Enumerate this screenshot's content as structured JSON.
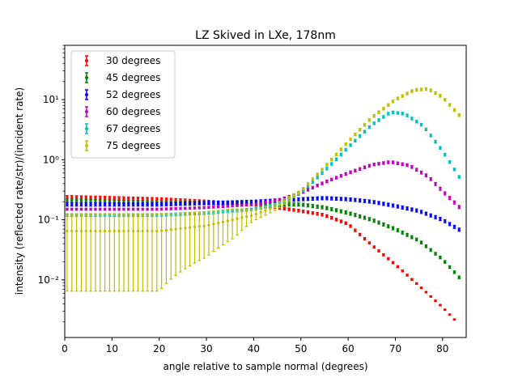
{
  "chart_data": {
    "type": "scatter",
    "title": "LZ Skived in LXe, 178nm",
    "xlabel": "angle relative to sample normal (degrees)",
    "ylabel": "intensity (reflected rate/str)/(incident rate)",
    "xlim": [
      0,
      85
    ],
    "ylim": [
      0.0011,
      80
    ],
    "yscale": "log",
    "grid": false,
    "legend_position": "top-left",
    "x_ticks": [
      0,
      10,
      20,
      30,
      40,
      50,
      60,
      70,
      80
    ],
    "x_tick_labels": [
      "0",
      "10",
      "20",
      "30",
      "40",
      "50",
      "60",
      "70",
      "80"
    ],
    "y_ticks": [
      0.01,
      0.1,
      1,
      10
    ],
    "y_tick_labels": [
      "10⁻²",
      "10⁻¹",
      "10⁰",
      "10¹"
    ],
    "series": [
      {
        "name": "30 degrees",
        "color": "#ff0000",
        "points": [
          [
            0,
            0.24
          ],
          [
            10,
            0.23
          ],
          [
            20,
            0.22
          ],
          [
            30,
            0.2
          ],
          [
            40,
            0.18
          ],
          [
            45,
            0.16
          ],
          [
            50,
            0.14
          ],
          [
            55,
            0.12
          ],
          [
            60,
            0.085
          ],
          [
            65,
            0.038
          ],
          [
            70,
            0.018
          ],
          [
            75,
            0.008
          ],
          [
            80,
            0.0035
          ],
          [
            83,
            0.002
          ]
        ],
        "errors": [
          [
            0,
            0.06
          ],
          [
            10,
            0.06
          ],
          [
            20,
            0.06
          ],
          [
            30,
            0.06
          ],
          [
            40,
            0.05
          ],
          [
            50,
            0.05
          ],
          [
            60,
            0.05
          ],
          [
            65,
            0.04
          ],
          [
            70,
            0.04
          ],
          [
            80,
            0.02
          ]
        ]
      },
      {
        "name": "45 degrees",
        "color": "#008000",
        "points": [
          [
            0,
            0.21
          ],
          [
            10,
            0.2
          ],
          [
            20,
            0.19
          ],
          [
            30,
            0.19
          ],
          [
            40,
            0.19
          ],
          [
            45,
            0.18
          ],
          [
            50,
            0.18
          ],
          [
            55,
            0.16
          ],
          [
            60,
            0.13
          ],
          [
            65,
            0.1
          ],
          [
            70,
            0.07
          ],
          [
            75,
            0.045
          ],
          [
            80,
            0.022
          ],
          [
            84,
            0.01
          ]
        ],
        "errors": [
          [
            0,
            0.06
          ],
          [
            10,
            0.06
          ],
          [
            20,
            0.06
          ],
          [
            30,
            0.06
          ],
          [
            40,
            0.06
          ],
          [
            50,
            0.06
          ],
          [
            60,
            0.06
          ],
          [
            70,
            0.06
          ],
          [
            80,
            0.05
          ]
        ]
      },
      {
        "name": "52 degrees",
        "color": "#0000ff",
        "points": [
          [
            0,
            0.18
          ],
          [
            10,
            0.18
          ],
          [
            20,
            0.18
          ],
          [
            30,
            0.19
          ],
          [
            40,
            0.2
          ],
          [
            45,
            0.21
          ],
          [
            50,
            0.22
          ],
          [
            55,
            0.23
          ],
          [
            60,
            0.22
          ],
          [
            65,
            0.2
          ],
          [
            70,
            0.17
          ],
          [
            75,
            0.14
          ],
          [
            80,
            0.1
          ],
          [
            84,
            0.065
          ]
        ],
        "errors": [
          [
            0,
            0.06
          ],
          [
            10,
            0.06
          ],
          [
            20,
            0.06
          ],
          [
            30,
            0.06
          ],
          [
            40,
            0.06
          ],
          [
            50,
            0.06
          ],
          [
            60,
            0.06
          ],
          [
            70,
            0.06
          ],
          [
            80,
            0.06
          ]
        ]
      },
      {
        "name": "60 degrees",
        "color": "#bf00bf",
        "points": [
          [
            0,
            0.15
          ],
          [
            10,
            0.15
          ],
          [
            20,
            0.15
          ],
          [
            30,
            0.16
          ],
          [
            40,
            0.18
          ],
          [
            45,
            0.21
          ],
          [
            50,
            0.28
          ],
          [
            55,
            0.42
          ],
          [
            60,
            0.6
          ],
          [
            65,
            0.82
          ],
          [
            69,
            0.92
          ],
          [
            73,
            0.8
          ],
          [
            77,
            0.52
          ],
          [
            80,
            0.3
          ],
          [
            84,
            0.15
          ]
        ],
        "errors": [
          [
            0,
            0.04
          ],
          [
            10,
            0.04
          ],
          [
            20,
            0.04
          ],
          [
            30,
            0.04
          ],
          [
            40,
            0.04
          ],
          [
            50,
            0.05
          ],
          [
            60,
            0.05
          ],
          [
            70,
            0.05
          ],
          [
            80,
            0.06
          ]
        ]
      },
      {
        "name": "67 degrees",
        "color": "#00bfbf",
        "points": [
          [
            0,
            0.12
          ],
          [
            10,
            0.12
          ],
          [
            20,
            0.12
          ],
          [
            30,
            0.13
          ],
          [
            40,
            0.15
          ],
          [
            45,
            0.18
          ],
          [
            50,
            0.28
          ],
          [
            55,
            0.65
          ],
          [
            60,
            1.6
          ],
          [
            65,
            3.8
          ],
          [
            69,
            6.2
          ],
          [
            72,
            5.8
          ],
          [
            76,
            3.6
          ],
          [
            80,
            1.4
          ],
          [
            84,
            0.45
          ]
        ],
        "errors": [
          [
            0,
            0.05
          ],
          [
            10,
            0.05
          ],
          [
            20,
            0.05
          ],
          [
            30,
            0.05
          ],
          [
            40,
            0.05
          ],
          [
            50,
            0.05
          ],
          [
            60,
            0.05
          ],
          [
            70,
            0.05
          ],
          [
            80,
            0.05
          ]
        ]
      },
      {
        "name": "75 degrees",
        "color": "#bfbf00",
        "points": [
          [
            0,
            0.065
          ],
          [
            10,
            0.065
          ],
          [
            20,
            0.065
          ],
          [
            30,
            0.08
          ],
          [
            40,
            0.12
          ],
          [
            45,
            0.17
          ],
          [
            50,
            0.3
          ],
          [
            55,
            0.75
          ],
          [
            60,
            2.0
          ],
          [
            65,
            5.0
          ],
          [
            70,
            10.0
          ],
          [
            74,
            14.5
          ],
          [
            77,
            15.0
          ],
          [
            80,
            11.0
          ],
          [
            84,
            5.0
          ]
        ],
        "errors": [
          [
            0,
            0.9
          ],
          [
            10,
            0.9
          ],
          [
            20,
            0.9
          ],
          [
            30,
            0.7
          ],
          [
            36,
            0.5
          ],
          [
            40,
            0.2
          ],
          [
            50,
            0.05
          ],
          [
            60,
            0.05
          ],
          [
            70,
            0.05
          ],
          [
            80,
            0.05
          ]
        ]
      }
    ]
  }
}
